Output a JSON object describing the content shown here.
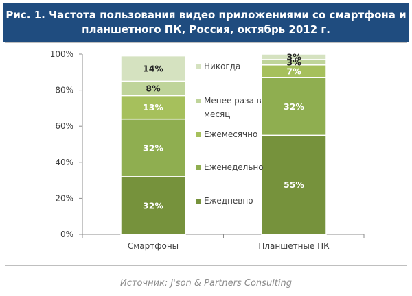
{
  "header": {
    "line1": "Рис. 1. Частота пользования видео приложениями со смартфона и",
    "line2": "планшетного ПК, Россия, октябрь 2012 г."
  },
  "source": "Источник: J'son & Partners Consulting",
  "colors": {
    "header_bg": "#1f4c7f",
    "series": [
      "#76923c",
      "#8fae50",
      "#a6c05c",
      "#bfd49a",
      "#d5e2c0"
    ]
  },
  "chart_data": {
    "type": "bar",
    "stacked": true,
    "categories": [
      "Смартфоны",
      "Планшетные ПК"
    ],
    "series": [
      {
        "name": "Ежедневно",
        "values": [
          32,
          55
        ]
      },
      {
        "name": "Еженедельно",
        "values": [
          32,
          32
        ]
      },
      {
        "name": "Ежемесячно",
        "values": [
          13,
          7
        ]
      },
      {
        "name": "Менее раза в месяц",
        "values": [
          8,
          3
        ]
      },
      {
        "name": "Никогда",
        "values": [
          14,
          3
        ]
      }
    ],
    "ylim": [
      0,
      100
    ],
    "yticks": [
      "0%",
      "20%",
      "40%",
      "60%",
      "80%",
      "100%"
    ],
    "legend": "between bars",
    "legend_lines": [
      [
        "Никогда"
      ],
      [
        "Менее раза в",
        "месяц"
      ],
      [
        "Ежемесячно"
      ],
      [
        "Еженедельно"
      ],
      [
        "Ежедневно"
      ]
    ]
  }
}
